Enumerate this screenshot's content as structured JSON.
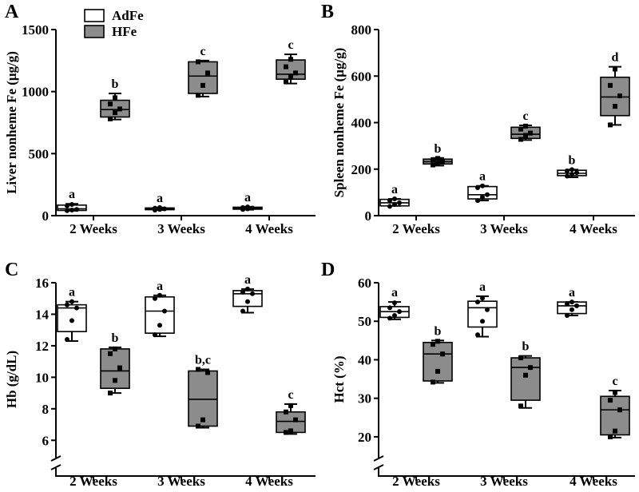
{
  "legend": {
    "items": [
      {
        "label": "AdFe",
        "color": "#ffffff"
      },
      {
        "label": "HFe",
        "color": "#8c8c8c"
      }
    ]
  },
  "colors": {
    "AdFe": "#ffffff",
    "HFe": "#8c8c8c",
    "stroke": "#000000"
  },
  "chart_data": [
    {
      "panel": "A",
      "type": "box",
      "ylabel": "Liver nonheme Fe (μg/g)",
      "categories": [
        "2 Weeks",
        "3 Weeks",
        "4 Weeks"
      ],
      "ylim": [
        0,
        1500
      ],
      "yticks": [
        0,
        500,
        1000,
        1500
      ],
      "axis_break": false,
      "series": [
        {
          "name": "AdFe",
          "boxes": [
            {
              "min": 40,
              "q1": 42,
              "median": 55,
              "q3": 85,
              "max": 95,
              "points": [
                40,
                45,
                50,
                80,
                90
              ],
              "label": "a"
            },
            {
              "min": 45,
              "q1": 48,
              "median": 55,
              "q3": 62,
              "max": 65,
              "points": [
                45,
                50,
                55,
                60,
                65
              ],
              "label": "a"
            },
            {
              "min": 48,
              "q1": 52,
              "median": 60,
              "q3": 68,
              "max": 72,
              "points": [
                50,
                55,
                60,
                65,
                70
              ],
              "label": "a"
            }
          ]
        },
        {
          "name": "HFe",
          "boxes": [
            {
              "min": 775,
              "q1": 795,
              "median": 855,
              "q3": 930,
              "max": 985,
              "points": [
                780,
                830,
                860,
                900,
                950
              ],
              "label": "b"
            },
            {
              "min": 960,
              "q1": 985,
              "median": 1125,
              "q3": 1240,
              "max": 1250,
              "points": [
                970,
                1050,
                1150,
                1240
              ],
              "label": "c"
            },
            {
              "min": 1065,
              "q1": 1100,
              "median": 1140,
              "q3": 1255,
              "max": 1300,
              "points": [
                1080,
                1120,
                1150,
                1200,
                1260
              ],
              "label": "c"
            }
          ]
        }
      ]
    },
    {
      "panel": "B",
      "type": "box",
      "ylabel": "Spleen nonheme Fe (μg/g)",
      "categories": [
        "2 Weeks",
        "3 Weeks",
        "4 Weeks"
      ],
      "ylim": [
        0,
        800
      ],
      "yticks": [
        0,
        200,
        400,
        600,
        800
      ],
      "axis_break": false,
      "series": [
        {
          "name": "AdFe",
          "boxes": [
            {
              "min": 42,
              "q1": 42,
              "median": 55,
              "q3": 70,
              "max": 72,
              "points": [
                40,
                48,
                55,
                65,
                72
              ],
              "label": "a"
            },
            {
              "min": 65,
              "q1": 72,
              "median": 90,
              "q3": 125,
              "max": 128,
              "points": [
                65,
                80,
                90,
                120,
                128
              ],
              "label": "a"
            },
            {
              "min": 165,
              "q1": 172,
              "median": 182,
              "q3": 195,
              "max": 198,
              "points": [
                170,
                178,
                185,
                192,
                198
              ],
              "label": "b"
            }
          ]
        },
        {
          "name": "HFe",
          "boxes": [
            {
              "min": 215,
              "q1": 222,
              "median": 232,
              "q3": 243,
              "max": 248,
              "points": [
                218,
                225,
                232,
                240,
                246
              ],
              "label": "b"
            },
            {
              "min": 325,
              "q1": 332,
              "median": 350,
              "q3": 380,
              "max": 388,
              "points": [
                328,
                345,
                355,
                372,
                385
              ],
              "label": "c"
            },
            {
              "min": 390,
              "q1": 430,
              "median": 510,
              "q3": 595,
              "max": 640,
              "points": [
                390,
                470,
                515,
                560,
                630
              ],
              "label": "d"
            }
          ]
        }
      ]
    },
    {
      "panel": "C",
      "type": "box",
      "ylabel": "Hb (g/dL)",
      "categories": [
        "2 Weeks",
        "3 Weeks",
        "4 Weeks"
      ],
      "ylim": [
        5,
        16
      ],
      "yticks": [
        6,
        8,
        10,
        12,
        14,
        16
      ],
      "axis_break": true,
      "series": [
        {
          "name": "AdFe",
          "boxes": [
            {
              "min": 12.3,
              "q1": 12.9,
              "median": 14.4,
              "q3": 14.6,
              "max": 14.8,
              "points": [
                12.4,
                13.6,
                14.4,
                14.6,
                14.8
              ],
              "label": "a"
            },
            {
              "min": 12.6,
              "q1": 12.8,
              "median": 14.2,
              "q3": 15.1,
              "max": 15.2,
              "points": [
                12.7,
                13.3,
                14.2,
                15.0,
                15.2
              ],
              "label": "a"
            },
            {
              "min": 14.1,
              "q1": 14.5,
              "median": 15.3,
              "q3": 15.5,
              "max": 15.6,
              "points": [
                14.2,
                14.8,
                15.3,
                15.4,
                15.6
              ],
              "label": "a"
            }
          ]
        },
        {
          "name": "HFe",
          "boxes": [
            {
              "min": 9.0,
              "q1": 9.3,
              "median": 10.4,
              "q3": 11.8,
              "max": 11.9,
              "points": [
                9.0,
                9.8,
                10.6,
                11.5,
                11.8
              ],
              "label": "b"
            },
            {
              "min": 6.8,
              "q1": 6.9,
              "median": 8.6,
              "q3": 10.4,
              "max": 10.5,
              "points": [
                6.9,
                7.3,
                10.3,
                10.5
              ],
              "label": "b,c"
            },
            {
              "min": 6.4,
              "q1": 6.5,
              "median": 7.2,
              "q3": 7.8,
              "max": 8.3,
              "points": [
                6.5,
                6.6,
                7.3,
                7.8,
                8.2
              ],
              "label": "c"
            }
          ]
        }
      ]
    },
    {
      "panel": "D",
      "type": "box",
      "ylabel": "Hct (%)",
      "categories": [
        "2 Weeks",
        "3 Weeks",
        "4 Weeks"
      ],
      "ylim": [
        15,
        60
      ],
      "yticks": [
        20,
        30,
        40,
        50,
        60
      ],
      "axis_break": true,
      "series": [
        {
          "name": "AdFe",
          "boxes": [
            {
              "min": 50.5,
              "q1": 51.0,
              "median": 52.5,
              "q3": 53.8,
              "max": 55.0,
              "points": [
                50.8,
                51.5,
                52.5,
                53.5,
                54.8
              ],
              "label": "a"
            },
            {
              "min": 46.0,
              "q1": 48.5,
              "median": 53.5,
              "q3": 55.2,
              "max": 56.5,
              "points": [
                46.5,
                50.0,
                53.0,
                55.0,
                56.0
              ],
              "label": "a"
            },
            {
              "min": 51.5,
              "q1": 52.0,
              "median": 54.0,
              "q3": 55.0,
              "max": 55.0,
              "points": [
                51.5,
                53.0,
                54.0,
                54.5,
                55.0
              ],
              "label": "a"
            }
          ]
        },
        {
          "name": "HFe",
          "boxes": [
            {
              "min": 34.0,
              "q1": 34.5,
              "median": 41.5,
              "q3": 44.5,
              "max": 45.0,
              "points": [
                34.2,
                37.0,
                41.5,
                44.0,
                44.8
              ],
              "label": "b"
            },
            {
              "min": 27.5,
              "q1": 29.5,
              "median": 38.0,
              "q3": 40.5,
              "max": 41.0,
              "points": [
                28.0,
                36.0,
                38.0,
                40.5
              ],
              "label": "b"
            },
            {
              "min": 19.8,
              "q1": 20.5,
              "median": 27.0,
              "q3": 30.5,
              "max": 32.0,
              "points": [
                20.0,
                21.5,
                27.0,
                29.5,
                31.5
              ],
              "label": "c"
            }
          ]
        }
      ]
    }
  ]
}
